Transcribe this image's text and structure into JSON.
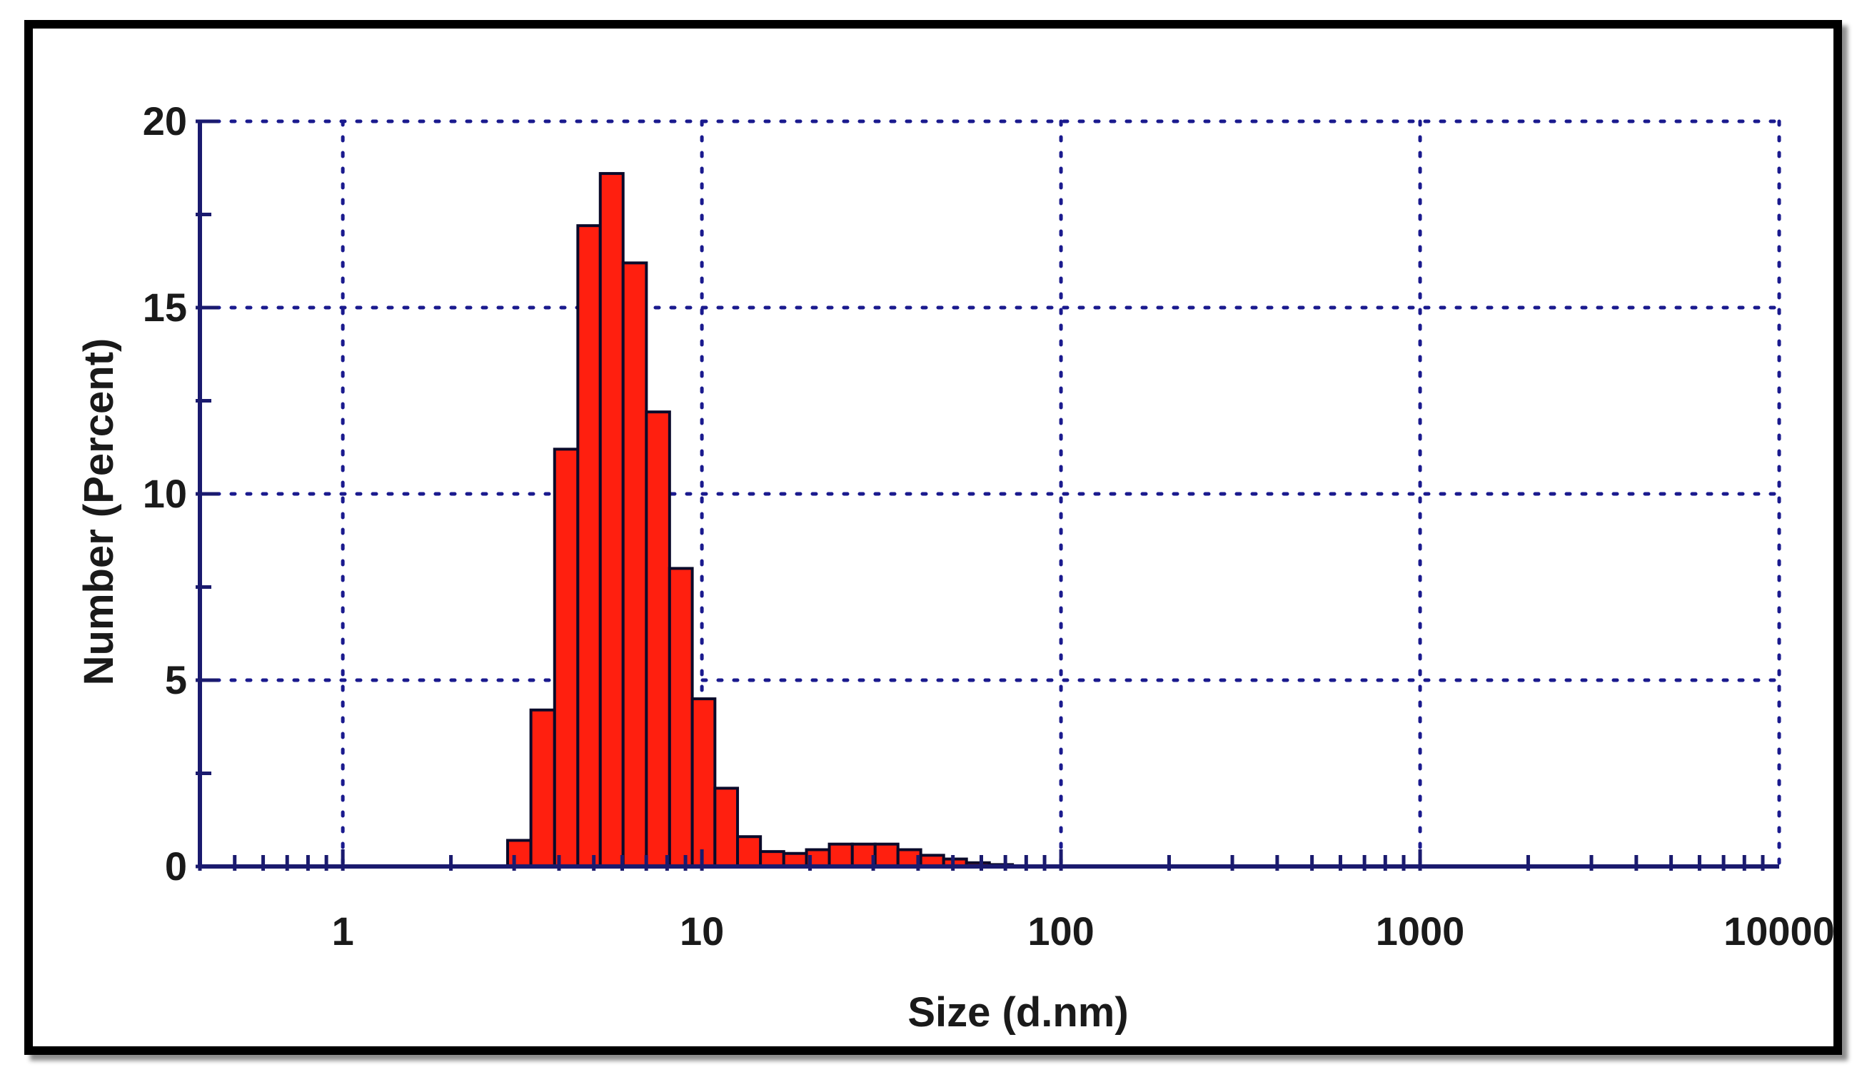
{
  "chart_data": {
    "type": "bar",
    "title": "",
    "xlabel": "Size (d.nm)",
    "ylabel": "Number (Percent)",
    "x_scale": "log",
    "xlim": [
      0.4,
      10000
    ],
    "ylim": [
      0,
      20
    ],
    "x_ticks": [
      {
        "value": 1,
        "label": "1"
      },
      {
        "value": 10,
        "label": "10"
      },
      {
        "value": 100,
        "label": "100"
      },
      {
        "value": 1000,
        "label": "1000"
      },
      {
        "value": 10000,
        "label": "10000"
      }
    ],
    "y_ticks": [
      {
        "value": 0,
        "label": "0"
      },
      {
        "value": 5,
        "label": "5"
      },
      {
        "value": 10,
        "label": "10"
      },
      {
        "value": 15,
        "label": "15"
      },
      {
        "value": 20,
        "label": "20"
      }
    ],
    "grid": true,
    "legend": "none",
    "bar_color": "#ff1f0f",
    "edge_color": "#0a0a2a",
    "axis_color": "#1a1a6e",
    "grid_color": "#1a1a8e",
    "bins": [
      {
        "size": 3.1,
        "value": 0.7
      },
      {
        "size": 3.6,
        "value": 4.2
      },
      {
        "size": 4.2,
        "value": 11.2
      },
      {
        "size": 4.85,
        "value": 17.2
      },
      {
        "size": 5.6,
        "value": 18.6
      },
      {
        "size": 6.5,
        "value": 16.2
      },
      {
        "size": 7.55,
        "value": 12.2
      },
      {
        "size": 8.75,
        "value": 8.0
      },
      {
        "size": 10.1,
        "value": 4.5
      },
      {
        "size": 11.7,
        "value": 2.1
      },
      {
        "size": 13.5,
        "value": 0.8
      },
      {
        "size": 15.7,
        "value": 0.4
      },
      {
        "size": 18.2,
        "value": 0.35
      },
      {
        "size": 21.0,
        "value": 0.45
      },
      {
        "size": 24.4,
        "value": 0.6
      },
      {
        "size": 28.2,
        "value": 0.6
      },
      {
        "size": 32.7,
        "value": 0.6
      },
      {
        "size": 37.8,
        "value": 0.45
      },
      {
        "size": 43.8,
        "value": 0.3
      },
      {
        "size": 50.7,
        "value": 0.2
      },
      {
        "size": 58.7,
        "value": 0.1
      },
      {
        "size": 68.0,
        "value": 0.05
      }
    ]
  }
}
